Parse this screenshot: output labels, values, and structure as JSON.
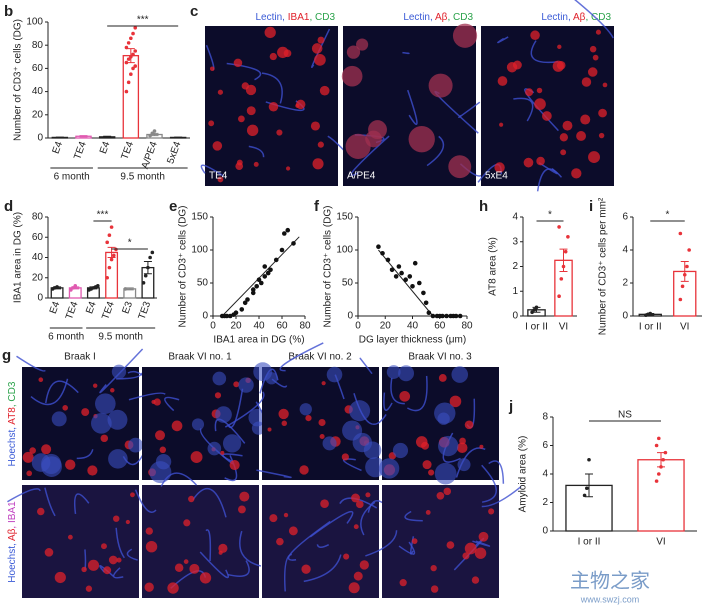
{
  "chart_data": [
    {
      "type": "bar",
      "panel": "b",
      "ylabel": "Number of CD3⁺ cells (DG)",
      "categories": [
        "E4",
        "TE4",
        "E4",
        "TE4",
        "A/PE4",
        "5xE4"
      ],
      "values": [
        0.5,
        1.5,
        1,
        71,
        3,
        0.5
      ],
      "errors": [
        0.3,
        0.5,
        0.5,
        6,
        1,
        0.3
      ],
      "colors": [
        "#222222",
        "#e05ab0",
        "#222222",
        "#e8333a",
        "#888888",
        "#222222"
      ],
      "points": [
        [],
        [],
        [],
        [
          40,
          48,
          55,
          60,
          62,
          65,
          68,
          70,
          72,
          75,
          78,
          82,
          86,
          90,
          95
        ],
        [
          2,
          4,
          6
        ],
        []
      ],
      "ylim": [
        0,
        100
      ],
      "yticks": [
        0,
        20,
        40,
        60,
        80,
        100
      ],
      "groups": [
        {
          "label": "6 month",
          "from": 0,
          "to": 1
        },
        {
          "label": "9.5 month",
          "from": 2,
          "to": 5
        }
      ],
      "significance": [
        {
          "label": "***",
          "from": 2,
          "to": 5
        }
      ]
    },
    {
      "type": "bar",
      "panel": "d",
      "ylabel": "IBA1 area in DG (%)",
      "categories": [
        "E4",
        "TE4",
        "E4",
        "TE4",
        "E3",
        "TE3"
      ],
      "values": [
        10,
        10,
        10,
        45,
        9,
        30
      ],
      "errors": [
        1,
        1,
        1,
        5,
        1,
        6
      ],
      "colors": [
        "#222222",
        "#e05ab0",
        "#222222",
        "#e8333a",
        "#888888",
        "#222222"
      ],
      "points": [
        [
          9,
          10,
          11
        ],
        [
          8,
          10,
          12
        ],
        [
          8,
          9,
          10,
          11,
          12
        ],
        [
          20,
          30,
          38,
          42,
          48,
          55,
          62,
          70
        ],
        [
          9
        ],
        [
          15,
          22,
          30,
          40,
          45
        ]
      ],
      "ylim": [
        0,
        80
      ],
      "yticks": [
        0,
        20,
        40,
        60,
        80
      ],
      "groups": [
        {
          "label": "6 month",
          "from": 0,
          "to": 1
        },
        {
          "label": "9.5 month",
          "from": 2,
          "to": 5
        }
      ],
      "significance": [
        {
          "label": "***",
          "from": 2,
          "to": 3
        },
        {
          "label": "*",
          "from": 3,
          "to": 5
        }
      ]
    },
    {
      "type": "scatter",
      "panel": "e",
      "xlabel": "IBA1 area in DG (%)",
      "ylabel": "Number of CD3⁺ cells (DG)",
      "x": [
        8,
        10,
        12,
        15,
        18,
        20,
        25,
        28,
        30,
        35,
        35,
        38,
        40,
        42,
        45,
        45,
        48,
        50,
        55,
        60,
        62,
        65,
        70
      ],
      "y": [
        0,
        0,
        0,
        0,
        2,
        5,
        10,
        20,
        25,
        40,
        35,
        45,
        55,
        50,
        60,
        75,
        65,
        70,
        85,
        100,
        125,
        130,
        110
      ],
      "fit": {
        "x": [
          8,
          75
        ],
        "y": [
          0,
          120
        ]
      },
      "xlim": [
        0,
        80
      ],
      "xticks": [
        0,
        20,
        40,
        60,
        80
      ],
      "ylim": [
        0,
        150
      ],
      "yticks": [
        0,
        50,
        100,
        150
      ]
    },
    {
      "type": "scatter",
      "panel": "f",
      "xlabel": "DG layer thickness (μm)",
      "ylabel": "Number of CD3⁺ cells (DG)",
      "x": [
        15,
        18,
        22,
        25,
        28,
        30,
        32,
        35,
        38,
        40,
        42,
        45,
        48,
        50,
        52,
        55,
        58,
        60,
        62,
        65,
        68,
        70,
        72,
        75
      ],
      "y": [
        105,
        95,
        85,
        70,
        60,
        75,
        65,
        55,
        60,
        45,
        80,
        50,
        35,
        20,
        5,
        0,
        0,
        0,
        0,
        0,
        0,
        0,
        0,
        0
      ],
      "fit": {
        "x": [
          15,
          55
        ],
        "y": [
          100,
          0
        ]
      },
      "xlim": [
        0,
        80
      ],
      "xticks": [
        0,
        20,
        40,
        60,
        80
      ],
      "ylim": [
        0,
        150
      ],
      "yticks": [
        0,
        50,
        100,
        150
      ]
    },
    {
      "type": "bar",
      "panel": "h",
      "ylabel": "AT8 area (%)",
      "categories": [
        "I or II",
        "VI"
      ],
      "values": [
        0.25,
        2.25
      ],
      "errors": [
        0.1,
        0.45
      ],
      "colors": [
        "#222222",
        "#e8333a"
      ],
      "points": [
        [
          0.15,
          0.25,
          0.35
        ],
        [
          0.8,
          1.5,
          2.0,
          2.6,
          3.2,
          3.6
        ]
      ],
      "ylim": [
        0,
        4
      ],
      "yticks": [
        0,
        1,
        2,
        3,
        4
      ],
      "significance": [
        {
          "label": "*",
          "from": 0,
          "to": 1
        }
      ]
    },
    {
      "type": "bar",
      "panel": "i",
      "ylabel": "Number of CD3⁺ cells per mm²",
      "categories": [
        "I or II",
        "VI"
      ],
      "values": [
        0.1,
        2.7
      ],
      "errors": [
        0.05,
        0.6
      ],
      "colors": [
        "#222222",
        "#e8333a"
      ],
      "points": [
        [
          0.05,
          0.1,
          0.15
        ],
        [
          1.0,
          1.8,
          2.5,
          3.0,
          4.0,
          5.0
        ]
      ],
      "ylim": [
        0,
        6
      ],
      "yticks": [
        0,
        2,
        4,
        6
      ],
      "significance": [
        {
          "label": "*",
          "from": 0,
          "to": 1
        }
      ]
    },
    {
      "type": "bar",
      "panel": "j",
      "ylabel": "Amyloid area (%)",
      "categories": [
        "I or II",
        "VI"
      ],
      "values": [
        3.2,
        5.0
      ],
      "errors": [
        0.8,
        0.5
      ],
      "colors": [
        "#222222",
        "#e8333a"
      ],
      "points": [
        [
          2.5,
          3.0,
          5.0
        ],
        [
          3.5,
          4.0,
          4.5,
          5.0,
          5.5,
          6.0,
          6.5
        ]
      ],
      "ylim": [
        0,
        8
      ],
      "yticks": [
        0,
        2,
        4,
        6,
        8
      ],
      "significance": [
        {
          "label": "NS",
          "from": 0,
          "to": 1
        }
      ]
    }
  ],
  "panel_c": {
    "panel": "c",
    "images": [
      {
        "heading": [
          {
            "text": "Lectin, ",
            "color": "#3b5bd6"
          },
          {
            "text": "IBA1",
            "color": "#e0202a"
          },
          {
            "text": ", CD3",
            "color": "#2aa24a"
          }
        ],
        "label": "TE4"
      },
      {
        "heading": [
          {
            "text": "Lectin, ",
            "color": "#3b5bd6"
          },
          {
            "text": "Aβ",
            "color": "#e0202a"
          },
          {
            "text": ", CD3",
            "color": "#2aa24a"
          }
        ],
        "label": "A/PE4"
      },
      {
        "heading": [
          {
            "text": "Lectin, ",
            "color": "#3b5bd6"
          },
          {
            "text": "Aβ",
            "color": "#e0202a"
          },
          {
            "text": ", CD3",
            "color": "#2aa24a"
          }
        ],
        "label": "5xE4"
      }
    ]
  },
  "panel_g": {
    "panel": "g",
    "columns": [
      "Braak I",
      "Braak VI no. 1",
      "Braak VI no. 2",
      "Braak VI no. 3"
    ],
    "rows": [
      [
        {
          "text": "Hoechst, ",
          "color": "#3b5bd6"
        },
        {
          "text": "AT8",
          "color": "#e0202a"
        },
        {
          "text": ", CD3",
          "color": "#2aa24a"
        }
      ],
      [
        {
          "text": "Hoechst, ",
          "color": "#3b5bd6"
        },
        {
          "text": "Aβ",
          "color": "#e0202a"
        },
        {
          "text": ", IBA1",
          "color": "#c040c0"
        }
      ]
    ]
  },
  "watermark": {
    "name": "主物之家",
    "url": "www.swzj.com"
  }
}
